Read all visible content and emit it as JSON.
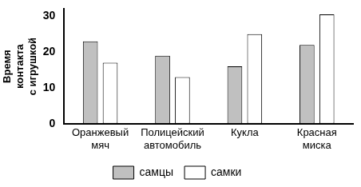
{
  "chart_data": {
    "type": "bar",
    "y_label": "Время контакта с игрушкой",
    "categories": [
      "Оранжевый мяч",
      "Полицейский автомобиль",
      "Кукла",
      "Красная миска"
    ],
    "series": [
      {
        "name": "самцы",
        "color": "#c0c0c0",
        "values": [
          23,
          19,
          16,
          22
        ]
      },
      {
        "name": "самки",
        "color": "#ffffff",
        "values": [
          17,
          13,
          25,
          30.5
        ]
      }
    ],
    "ylim": [
      0,
      32
    ],
    "yticks": [
      0,
      10,
      20,
      30
    ],
    "grid": false,
    "legend": "bottom"
  }
}
